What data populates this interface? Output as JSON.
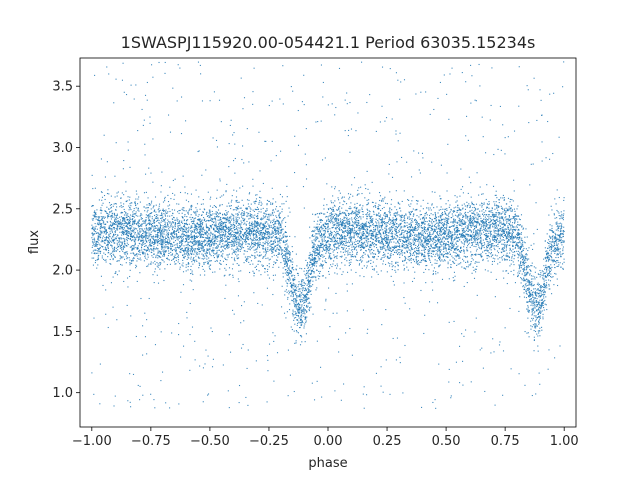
{
  "chart_data": {
    "type": "scatter",
    "title": "1SWASPJ115920.00-054421.1 Period 63035.15234s",
    "xlabel": "phase",
    "ylabel": "flux",
    "xlim": [
      -1.05,
      1.05
    ],
    "ylim": [
      0.72,
      3.73
    ],
    "xticks": [
      -1.0,
      -0.75,
      -0.5,
      -0.25,
      0.0,
      0.25,
      0.5,
      0.75,
      1.0
    ],
    "xtick_labels": [
      "−1.00",
      "−0.75",
      "−0.50",
      "−0.25",
      "0.00",
      "0.25",
      "0.50",
      "0.75",
      "1.00"
    ],
    "yticks": [
      1.0,
      1.5,
      2.0,
      2.5,
      3.0,
      3.5
    ],
    "ytick_labels": [
      "1.0",
      "1.5",
      "2.0",
      "2.5",
      "3.0",
      "3.5"
    ],
    "grid": false,
    "marker_color": "#1f77b4",
    "series": [
      {
        "phase": [
          -1.0,
          -0.9,
          -0.8,
          -0.7,
          -0.6,
          -0.5,
          -0.4,
          -0.3,
          -0.2,
          -0.17,
          -0.15,
          -0.13,
          -0.11,
          -0.09,
          -0.07,
          -0.05,
          0.0,
          0.1,
          0.2,
          0.3,
          0.4,
          0.5,
          0.6,
          0.7,
          0.8,
          0.83,
          0.85,
          0.87,
          0.89,
          0.91,
          0.93,
          0.95,
          1.0
        ],
        "flux": [
          2.3,
          2.32,
          2.3,
          2.28,
          2.26,
          2.28,
          2.3,
          2.32,
          2.3,
          2.05,
          1.85,
          1.72,
          1.68,
          1.8,
          2.05,
          2.2,
          2.3,
          2.32,
          2.3,
          2.28,
          2.26,
          2.28,
          2.3,
          2.32,
          2.3,
          2.05,
          1.85,
          1.72,
          1.68,
          1.8,
          2.05,
          2.2,
          2.3
        ]
      }
    ]
  }
}
